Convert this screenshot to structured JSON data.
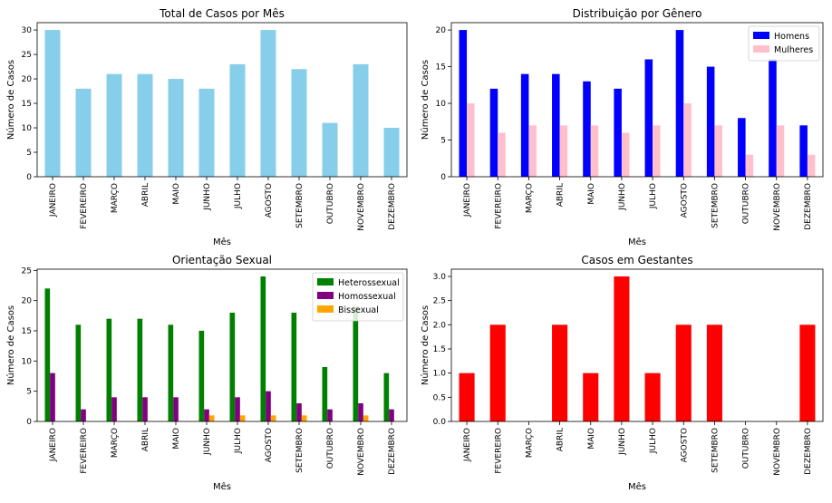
{
  "chart_data": [
    {
      "type": "bar",
      "title": "Total de Casos por Mês",
      "xlabel": "Mês",
      "ylabel": "Número de Casos",
      "ylim": [
        0,
        31.5
      ],
      "yticks": [
        0,
        5,
        10,
        15,
        20,
        25,
        30
      ],
      "categories": [
        "JANEIRO",
        "FEVEREIRO",
        "MARÇO",
        "ABRIL",
        "MAIO",
        "JUNHO",
        "JULHO",
        "AGOSTO",
        "SETEMBRO",
        "OUTUBRO",
        "NOVEMBRO",
        "DEZEMBRO"
      ],
      "legend": null,
      "series": [
        {
          "color": "#87CEEB",
          "values": [
            30,
            18,
            21,
            21,
            20,
            18,
            23,
            30,
            22,
            11,
            23,
            10
          ]
        }
      ]
    },
    {
      "type": "bar",
      "title": "Distribuição por Gênero",
      "xlabel": "Mês",
      "ylabel": "Número de Casos",
      "ylim": [
        0,
        21
      ],
      "yticks": [
        0,
        5,
        10,
        15,
        20
      ],
      "categories": [
        "JANEIRO",
        "FEVEREIRO",
        "MARÇO",
        "ABRIL",
        "MAIO",
        "JUNHO",
        "JULHO",
        "AGOSTO",
        "SETEMBRO",
        "OUTUBRO",
        "NOVEMBRO",
        "DEZEMBRO"
      ],
      "legend": "top-right",
      "series": [
        {
          "name": "Homens",
          "color": "#0000FF",
          "values": [
            20,
            12,
            14,
            14,
            13,
            12,
            16,
            20,
            15,
            8,
            16,
            7
          ]
        },
        {
          "name": "Mulheres",
          "color": "#FFC0CB",
          "values": [
            10,
            6,
            7,
            7,
            7,
            6,
            7,
            10,
            7,
            3,
            7,
            3
          ]
        }
      ]
    },
    {
      "type": "bar",
      "title": "Orientação Sexual",
      "xlabel": "Mês",
      "ylabel": "Número de Casos",
      "ylim": [
        0,
        25.2
      ],
      "yticks": [
        0,
        5,
        10,
        15,
        20,
        25
      ],
      "categories": [
        "JANEIRO",
        "FEVEREIRO",
        "MARÇO",
        "ABRIL",
        "MAIO",
        "JUNHO",
        "JULHO",
        "AGOSTO",
        "SETEMBRO",
        "OUTUBRO",
        "NOVEMBRO",
        "DEZEMBRO"
      ],
      "legend": "top-right",
      "series": [
        {
          "name": "Heterossexual",
          "color": "#008000",
          "values": [
            22,
            16,
            17,
            17,
            16,
            15,
            18,
            24,
            18,
            9,
            19,
            8
          ]
        },
        {
          "name": "Homossexual",
          "color": "#800080",
          "values": [
            8,
            2,
            4,
            4,
            4,
            2,
            4,
            5,
            3,
            2,
            3,
            2
          ]
        },
        {
          "name": "Bissexual",
          "color": "#FFA500",
          "values": [
            0,
            0,
            0,
            0,
            0,
            1,
            1,
            1,
            1,
            0,
            1,
            0
          ]
        }
      ]
    },
    {
      "type": "bar",
      "title": "Casos em Gestantes",
      "xlabel": "Mês",
      "ylabel": "Número de Casos",
      "ylim": [
        0,
        3.15
      ],
      "yticks": [
        "0.0",
        "0.5",
        "1.0",
        "1.5",
        "2.0",
        "2.5",
        "3.0"
      ],
      "categories": [
        "JANEIRO",
        "FEVEREIRO",
        "MARÇO",
        "ABRIL",
        "MAIO",
        "JUNHO",
        "JULHO",
        "AGOSTO",
        "SETEMBRO",
        "OUTUBRO",
        "NOVEMBRO",
        "DEZEMBRO"
      ],
      "legend": null,
      "series": [
        {
          "color": "#FF0000",
          "values": [
            1,
            2,
            0,
            2,
            1,
            3,
            1,
            2,
            2,
            0,
            0,
            2
          ]
        }
      ]
    }
  ]
}
